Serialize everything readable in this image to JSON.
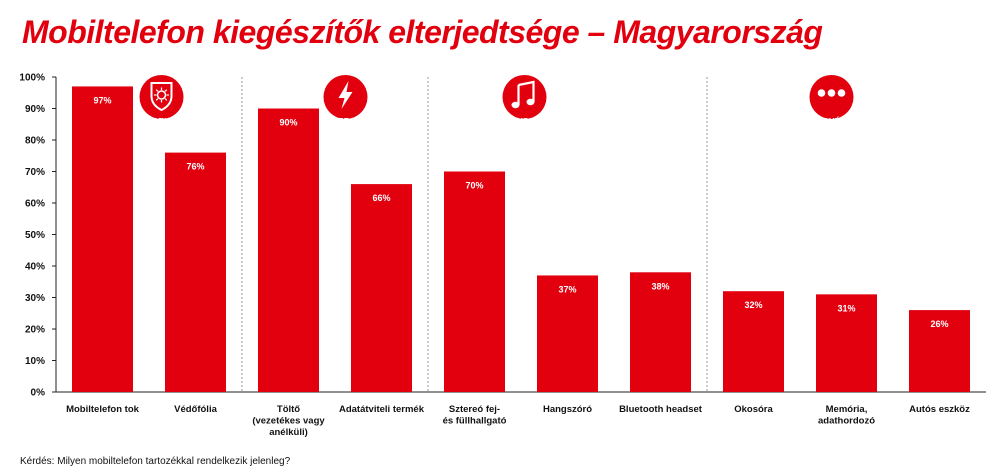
{
  "title": "Mobiltelefon kiegészítők elterjedtsége – Magyarország",
  "question": "Kérdés: Milyen mobiltelefon tartozékkal rendelkezik jelenleg?",
  "colors": {
    "accent": "#e2000f",
    "axis": "#222222",
    "grid": "#9a9a9a"
  },
  "groups": [
    {
      "label": "VÉDELEM",
      "icon": "shield-icon",
      "start": 0,
      "end": 1
    },
    {
      "label": "ENERGIA",
      "icon": "lightning-icon",
      "start": 2,
      "end": 3
    },
    {
      "label": "AUDIO",
      "icon": "music-note-icon",
      "start": 4,
      "end": 6
    },
    {
      "label": "EGYÉB",
      "icon": "dots-icon",
      "start": 7,
      "end": 9
    }
  ],
  "chart_data": {
    "type": "bar",
    "title": "Mobiltelefon kiegészítők elterjedtsége – Magyarország",
    "categories": [
      "Mobiltelefon tok",
      "Védőfólia",
      "Töltő\n(vezetékes vagy\nanélküli)",
      "Adatátviteli termék",
      "Sztereó fej-\nés füllhallgató",
      "Hangszóró",
      "Bluetooth headset",
      "Okosóra",
      "Memória,\nadathordozó",
      "Autós eszköz"
    ],
    "values": [
      97,
      76,
      90,
      66,
      70,
      37,
      38,
      32,
      31,
      26
    ],
    "value_labels": [
      "97%",
      "76%",
      "90%",
      "66%",
      "70%",
      "37%",
      "38%",
      "32%",
      "31%",
      "26%"
    ],
    "ylim": [
      0,
      100
    ],
    "yticks": [
      "0%",
      "10%",
      "20%",
      "30%",
      "40%",
      "50%",
      "60%",
      "70%",
      "80%",
      "90%",
      "100%"
    ],
    "xlabel": "",
    "ylabel": "",
    "grid": false,
    "legend": "none"
  }
}
